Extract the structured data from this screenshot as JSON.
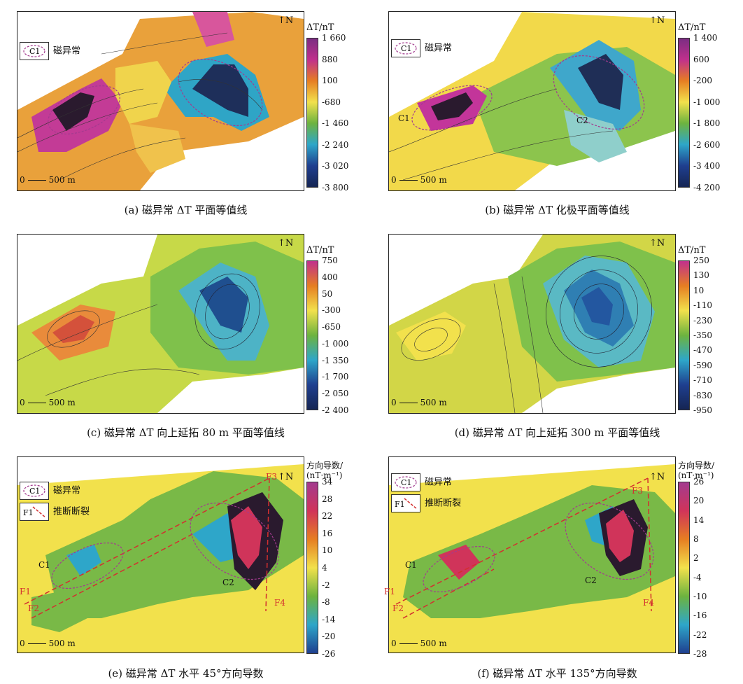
{
  "legend": {
    "anomaly_symbol": "C1",
    "anomaly_label": "磁异常",
    "fault_symbol": "F1",
    "fault_label": "推断断裂"
  },
  "north_label": "N",
  "scale_label": "500 m",
  "scale_zero": "0",
  "colors": {
    "magenta": "#c0308c",
    "orange": "#e67e22",
    "yellow": "#f2e14c",
    "green": "#6db33f",
    "cyan": "#2ea6c9",
    "blue": "#1f3f8f",
    "fault": "#d32f2f"
  },
  "panels": [
    {
      "caption": "(a) 磁异常 ΔT 平面等值线",
      "colorbar_title": "ΔT/nT",
      "ticks": [
        "1 660",
        "880",
        "100",
        "-680",
        "-1 460",
        "-2 240",
        "-3 020",
        "-3 800"
      ],
      "show_anomaly_legend": true,
      "show_fault_legend": false
    },
    {
      "caption": "(b) 磁异常 ΔT 化极平面等值线",
      "colorbar_title": "ΔT/nT",
      "ticks": [
        "1 400",
        "600",
        "-200",
        "-1 000",
        "-1 800",
        "-2 600",
        "-3 400",
        "-4 200"
      ],
      "show_anomaly_legend": true,
      "show_fault_legend": false,
      "anomaly_labels": [
        "C1",
        "C2"
      ]
    },
    {
      "caption": "(c) 磁异常 ΔT 向上延拓 80 m 平面等值线",
      "colorbar_title": "ΔT/nT",
      "ticks": [
        "750",
        "400",
        "50",
        "-300",
        "-650",
        "-1 000",
        "-1 350",
        "-1 700",
        "-2 050",
        "-2 400"
      ],
      "show_anomaly_legend": false,
      "show_fault_legend": false
    },
    {
      "caption": "(d) 磁异常 ΔT 向上延拓 300 m 平面等值线",
      "colorbar_title": "ΔT/nT",
      "ticks": [
        "250",
        "130",
        "10",
        "-110",
        "-230",
        "-350",
        "-470",
        "-590",
        "-710",
        "-830",
        "-950"
      ],
      "show_anomaly_legend": false,
      "show_fault_legend": false
    },
    {
      "caption": "(e) 磁异常 ΔT 水平 45°方向导数",
      "colorbar_title": "方向导数/",
      "colorbar_unit": "(nT·m⁻¹)",
      "ticks": [
        "34",
        "28",
        "22",
        "16",
        "10",
        "4",
        "-2",
        "-8",
        "-14",
        "-20",
        "-26"
      ],
      "show_anomaly_legend": true,
      "show_fault_legend": true,
      "anomaly_labels": [
        "C1",
        "C2"
      ],
      "fault_labels": [
        "F1",
        "F2",
        "F3",
        "F4"
      ]
    },
    {
      "caption": "(f) 磁异常 ΔT 水平 135°方向导数",
      "colorbar_title": "方向导数/",
      "colorbar_unit": "(nT·m⁻¹)",
      "ticks": [
        "26",
        "20",
        "14",
        "8",
        "2",
        "-4",
        "-10",
        "-16",
        "-22",
        "-28"
      ],
      "show_anomaly_legend": true,
      "show_fault_legend": true,
      "anomaly_labels": [
        "C1",
        "C2"
      ],
      "fault_labels": [
        "F1",
        "F2",
        "F3",
        "F4"
      ]
    }
  ]
}
